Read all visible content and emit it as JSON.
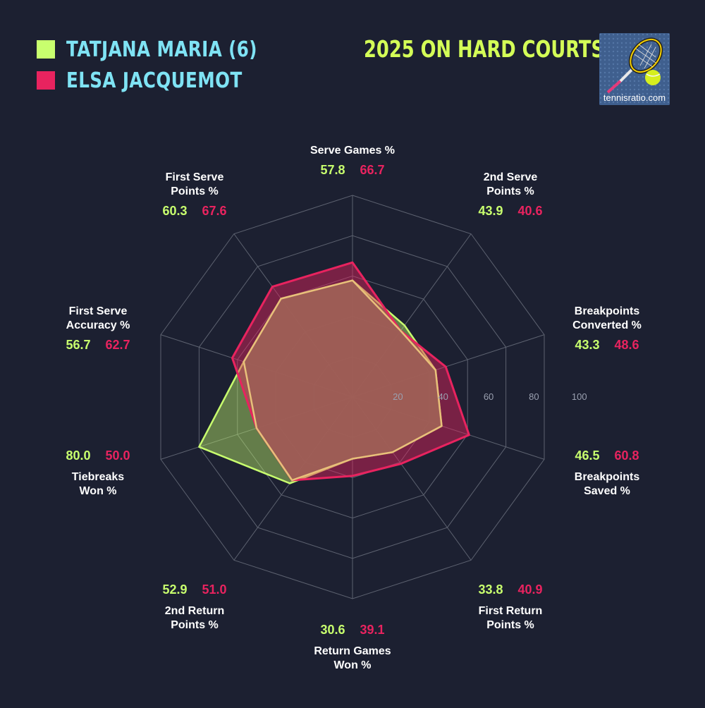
{
  "header": {
    "title": "2025 ON HARD COURTS",
    "logo_text": "tennisratio.com"
  },
  "legend": [
    {
      "name": "TATJANA MARIA (6)",
      "color": "#c8ff6e"
    },
    {
      "name": "ELSA JACQUEMOT",
      "color": "#e8235f"
    }
  ],
  "colors": {
    "background": "#1c2031",
    "grid": "#5d6270",
    "player1": "#c8ff6e",
    "player2": "#e8235f",
    "overlap_fill": "#9c5d55",
    "overlap_stroke": "#e8c17a"
  },
  "chart_data": {
    "type": "radar",
    "title": "2025 ON HARD COURTS",
    "rlim": [
      0,
      100
    ],
    "ticks": [
      20,
      40,
      60,
      80,
      100
    ],
    "axes": [
      {
        "label": [
          "Serve Games %"
        ]
      },
      {
        "label": [
          "2nd Serve",
          "Points %"
        ]
      },
      {
        "label": [
          "Breakpoints",
          "Converted %"
        ]
      },
      {
        "label": [
          "Breakpoints",
          "Saved %"
        ]
      },
      {
        "label": [
          "First Return",
          "Points %"
        ]
      },
      {
        "label": [
          "Return Games",
          "Won %"
        ]
      },
      {
        "label": [
          "2nd Return",
          "Points %"
        ]
      },
      {
        "label": [
          "Tiebreaks",
          "Won %"
        ]
      },
      {
        "label": [
          "First Serve",
          "Accuracy %"
        ]
      },
      {
        "label": [
          "First Serve",
          "Points %"
        ]
      }
    ],
    "series": [
      {
        "name": "TATJANA MARIA (6)",
        "values": [
          57.8,
          43.9,
          43.3,
          46.5,
          33.8,
          30.6,
          52.9,
          80.0,
          56.7,
          60.3
        ]
      },
      {
        "name": "ELSA JACQUEMOT",
        "values": [
          66.7,
          40.6,
          48.6,
          60.8,
          40.9,
          39.1,
          51.0,
          50.0,
          62.7,
          67.6
        ]
      }
    ]
  }
}
